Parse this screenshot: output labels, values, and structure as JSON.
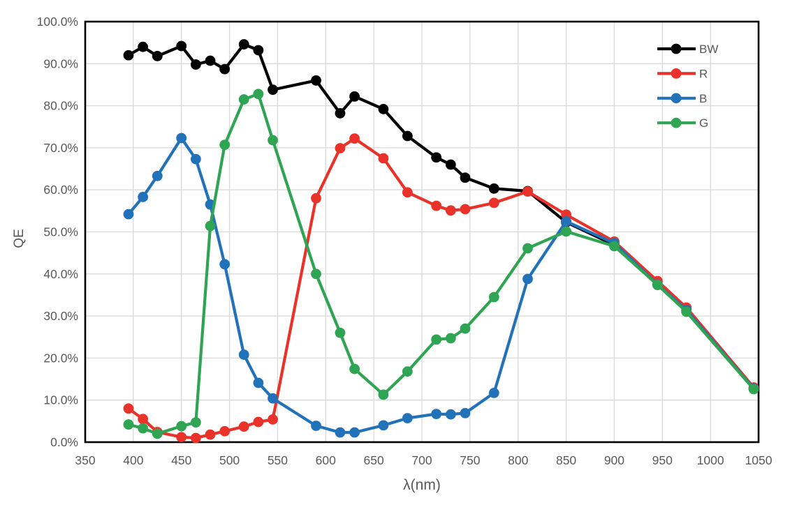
{
  "chart_data": {
    "type": "line",
    "title": "",
    "xlabel": "λ(nm)",
    "ylabel": "QE",
    "xlim": [
      350,
      1050
    ],
    "ylim": [
      0,
      100
    ],
    "x_ticks": [
      350,
      400,
      450,
      500,
      550,
      600,
      650,
      700,
      750,
      800,
      850,
      900,
      950,
      1000,
      1050
    ],
    "y_tick_labels": [
      "0.0%",
      "10.0%",
      "20.0%",
      "30.0%",
      "40.0%",
      "50.0%",
      "60.0%",
      "70.0%",
      "80.0%",
      "90.0%",
      "100.0%"
    ],
    "grid": true,
    "legend_position": "top-right-inside",
    "x": [
      395,
      410,
      425,
      450,
      465,
      480,
      495,
      515,
      530,
      545,
      590,
      615,
      630,
      660,
      685,
      715,
      730,
      745,
      775,
      810,
      850,
      900,
      945,
      975,
      1045
    ],
    "series": [
      {
        "name": "BW",
        "color": "#000000",
        "values": [
          92.0,
          94.0,
          91.8,
          94.2,
          89.8,
          90.7,
          88.7,
          94.6,
          93.2,
          83.8,
          86.0,
          78.2,
          82.2,
          79.2,
          72.8,
          67.7,
          66.0,
          62.9,
          60.3,
          59.7,
          52.3,
          46.9,
          37.4,
          31.2,
          12.7
        ]
      },
      {
        "name": "R",
        "color": "#e9332a",
        "values": [
          8.0,
          5.5,
          2.4,
          1.2,
          1.0,
          1.8,
          2.6,
          3.7,
          4.8,
          5.4,
          58.0,
          69.9,
          72.2,
          67.5,
          59.4,
          56.2,
          55.1,
          55.4,
          56.9,
          59.6,
          54.1,
          47.7,
          38.3,
          32.0,
          13.0
        ]
      },
      {
        "name": "B",
        "color": "#2272b9",
        "values": [
          54.2,
          58.3,
          63.3,
          72.3,
          67.3,
          56.5,
          42.3,
          20.8,
          14.1,
          10.4,
          3.9,
          2.3,
          2.3,
          4.0,
          5.7,
          6.7,
          6.6,
          6.9,
          11.7,
          38.8,
          52.5,
          47.3,
          37.5,
          31.4,
          12.7
        ]
      },
      {
        "name": "G",
        "color": "#2fa452",
        "values": [
          4.2,
          3.3,
          2.0,
          3.8,
          4.7,
          51.4,
          70.7,
          81.5,
          82.8,
          71.8,
          40.0,
          26.0,
          17.4,
          11.3,
          16.8,
          24.4,
          24.7,
          27.0,
          34.5,
          46.1,
          50.1,
          46.6,
          37.4,
          31.0,
          12.6
        ]
      }
    ],
    "styles": {
      "grid_color": "#d9d9d9",
      "axis_border_color": "#000000",
      "tick_label_color": "#595959",
      "legend_label_color": "#595959"
    }
  }
}
